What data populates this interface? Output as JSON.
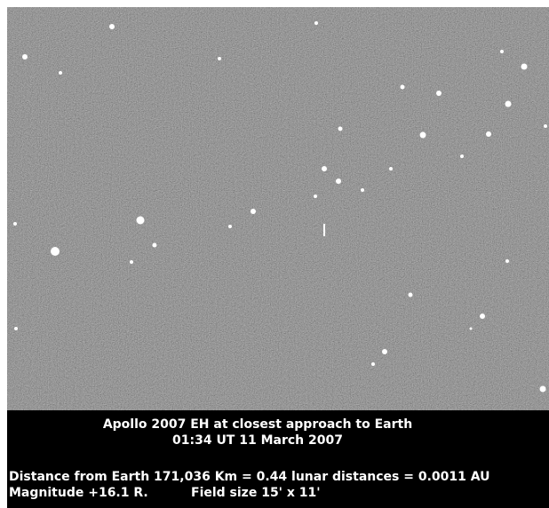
{
  "caption": {
    "title": "Apollo 2007 EH at closest approach to Earth",
    "time": "01:34 UT 11 March 2007",
    "distance": "Distance from Earth 171,036 Km = 0.44 lunar distances = 0.0011 AU",
    "magnitude": "Magnitude +16.1 R.",
    "field": "Field size 15' x 11'"
  }
}
